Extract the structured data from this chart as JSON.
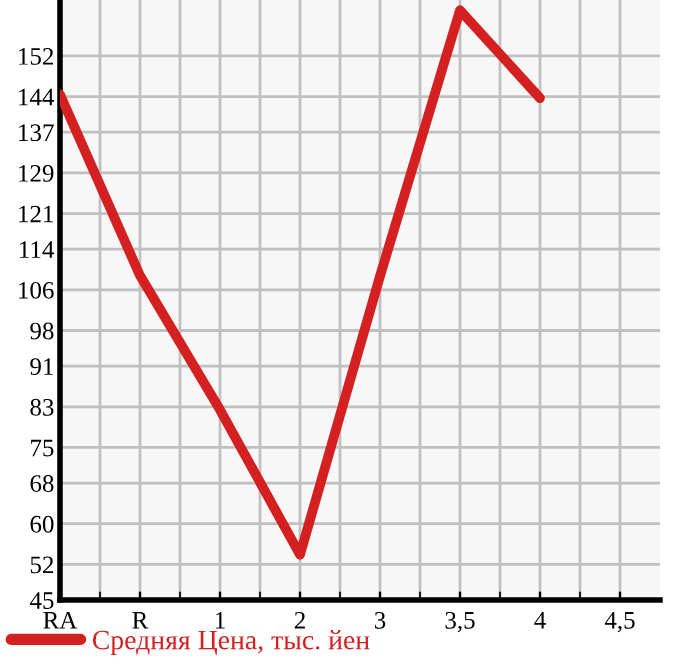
{
  "chart_data": {
    "type": "line",
    "categories": [
      "RA",
      "R",
      "1",
      "2",
      "3",
      "3,5",
      "4",
      "4,5"
    ],
    "series": [
      {
        "name": "Средняя Цена, тыс. йен",
        "color": "#d42020",
        "values": [
          144.4,
          108.8,
          82.4,
          53.9,
          108.7,
          161,
          143.7,
          null
        ]
      }
    ],
    "ylim": [
      45,
      163
    ],
    "yticks": [
      45,
      52,
      60,
      68,
      75,
      83,
      91,
      98,
      106,
      114,
      121,
      129,
      137,
      144,
      152
    ],
    "grid": true,
    "legend": "bottom",
    "marker": "none",
    "line_style": "solid"
  }
}
